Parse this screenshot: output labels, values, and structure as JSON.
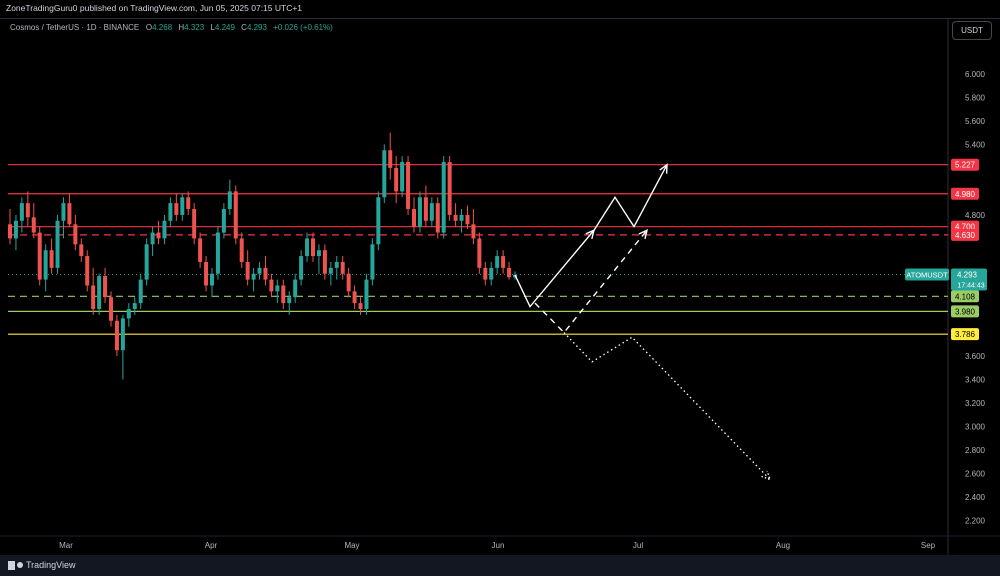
{
  "header": {
    "publisher_line": "ZoneTradingGuru0 published on TradingView.com, Jun 05, 2025 07:15 UTC+1"
  },
  "legend": {
    "symbol": "Cosmos / TetherUS · 1D · BINANCE",
    "o_label": "O",
    "o_value": "4.268",
    "h_label": "H",
    "h_value": "4.323",
    "l_label": "L",
    "l_value": "4.249",
    "c_label": "C",
    "c_value": "4.293",
    "change": "+0.026 (+0.61%)"
  },
  "currency_button": "USDT",
  "footer": {
    "brand": "TradingView"
  },
  "colors": {
    "up": "#26a69a",
    "down": "#ef5350",
    "red_level": "#f23645",
    "green_level": "#9ccc65",
    "yellow_level": "#ffeb3b",
    "ticker_tag": "#26a69a"
  },
  "chart_data": {
    "type": "candlestick",
    "x_axis": {
      "labels": [
        "Mar",
        "Apr",
        "May",
        "Jun",
        "Jul",
        "Aug",
        "Sep"
      ]
    },
    "y_axis": {
      "range": [
        2.0,
        6.2
      ],
      "ticks": [
        "6.000",
        "5.800",
        "5.600",
        "5.400",
        "4.800",
        "3.600",
        "3.400",
        "3.200",
        "3.000",
        "2.800",
        "2.600",
        "2.400",
        "2.200"
      ]
    },
    "levels": [
      {
        "value": 5.227,
        "label": "5.227",
        "style": "solid",
        "color": "#f23645"
      },
      {
        "value": 4.98,
        "label": "4.980",
        "style": "solid",
        "color": "#f23645"
      },
      {
        "value": 4.7,
        "label": "4.700",
        "style": "solid",
        "color": "#f23645"
      },
      {
        "value": 4.63,
        "label": "4.630",
        "style": "dashed",
        "color": "#f23645"
      },
      {
        "value": 4.108,
        "label": "4.108",
        "style": "dashed",
        "color": "#9ccc65"
      },
      {
        "value": 3.98,
        "label": "3.980",
        "style": "solid",
        "color": "#9ccc65"
      },
      {
        "value": 3.786,
        "label": "3.786",
        "style": "solid",
        "color": "#ffeb3b"
      }
    ],
    "last_price": {
      "ticker": "ATOMUSDT",
      "price": "4.293",
      "countdown": "17:44:43"
    },
    "candles": [
      [
        4.72,
        4.85,
        4.55,
        4.6
      ],
      [
        4.6,
        4.8,
        4.5,
        4.75
      ],
      [
        4.75,
        4.95,
        4.65,
        4.9
      ],
      [
        4.9,
        5.0,
        4.7,
        4.78
      ],
      [
        4.78,
        4.9,
        4.6,
        4.65
      ],
      [
        4.65,
        4.7,
        4.2,
        4.25
      ],
      [
        4.25,
        4.55,
        4.15,
        4.5
      ],
      [
        4.5,
        4.6,
        4.3,
        4.35
      ],
      [
        4.35,
        4.8,
        4.3,
        4.75
      ],
      [
        4.75,
        4.95,
        4.6,
        4.9
      ],
      [
        4.9,
        4.98,
        4.7,
        4.72
      ],
      [
        4.72,
        4.8,
        4.5,
        4.55
      ],
      [
        4.55,
        4.6,
        4.4,
        4.45
      ],
      [
        4.45,
        4.5,
        4.15,
        4.2
      ],
      [
        4.2,
        4.35,
        3.95,
        4.0
      ],
      [
        4.0,
        4.3,
        3.95,
        4.28
      ],
      [
        4.28,
        4.35,
        4.05,
        4.1
      ],
      [
        4.1,
        4.15,
        3.85,
        3.9
      ],
      [
        3.9,
        3.95,
        3.6,
        3.65
      ],
      [
        3.65,
        3.95,
        3.4,
        3.92
      ],
      [
        3.92,
        4.05,
        3.85,
        4.0
      ],
      [
        4.0,
        4.1,
        3.95,
        4.05
      ],
      [
        4.05,
        4.3,
        4.0,
        4.25
      ],
      [
        4.25,
        4.6,
        4.2,
        4.55
      ],
      [
        4.55,
        4.7,
        4.45,
        4.65
      ],
      [
        4.65,
        4.75,
        4.55,
        4.6
      ],
      [
        4.6,
        4.8,
        4.55,
        4.75
      ],
      [
        4.75,
        4.95,
        4.7,
        4.9
      ],
      [
        4.9,
        4.98,
        4.75,
        4.8
      ],
      [
        4.8,
        4.98,
        4.75,
        4.95
      ],
      [
        4.95,
        5.0,
        4.8,
        4.85
      ],
      [
        4.85,
        4.9,
        4.55,
        4.6
      ],
      [
        4.6,
        4.65,
        4.35,
        4.4
      ],
      [
        4.4,
        4.45,
        4.15,
        4.2
      ],
      [
        4.2,
        4.35,
        4.1,
        4.3
      ],
      [
        4.3,
        4.7,
        4.25,
        4.65
      ],
      [
        4.65,
        4.9,
        4.6,
        4.85
      ],
      [
        4.85,
        5.1,
        4.8,
        5.0
      ],
      [
        5.0,
        5.05,
        4.55,
        4.6
      ],
      [
        4.6,
        4.65,
        4.35,
        4.4
      ],
      [
        4.4,
        4.5,
        4.2,
        4.25
      ],
      [
        4.25,
        4.35,
        4.15,
        4.3
      ],
      [
        4.3,
        4.4,
        4.25,
        4.35
      ],
      [
        4.35,
        4.45,
        4.2,
        4.25
      ],
      [
        4.25,
        4.3,
        4.1,
        4.15
      ],
      [
        4.15,
        4.25,
        4.05,
        4.2
      ],
      [
        4.2,
        4.25,
        4.0,
        4.05
      ],
      [
        4.05,
        4.15,
        3.95,
        4.1
      ],
      [
        4.1,
        4.3,
        4.05,
        4.25
      ],
      [
        4.25,
        4.5,
        4.2,
        4.45
      ],
      [
        4.45,
        4.65,
        4.4,
        4.6
      ],
      [
        4.6,
        4.65,
        4.4,
        4.45
      ],
      [
        4.45,
        4.55,
        4.3,
        4.5
      ],
      [
        4.5,
        4.55,
        4.25,
        4.3
      ],
      [
        4.3,
        4.4,
        4.2,
        4.35
      ],
      [
        4.35,
        4.45,
        4.25,
        4.4
      ],
      [
        4.4,
        4.45,
        4.25,
        4.3
      ],
      [
        4.3,
        4.35,
        4.1,
        4.15
      ],
      [
        4.15,
        4.2,
        4.0,
        4.05
      ],
      [
        4.05,
        4.1,
        3.95,
        4.0
      ],
      [
        4.0,
        4.3,
        3.95,
        4.25
      ],
      [
        4.25,
        4.6,
        4.2,
        4.55
      ],
      [
        4.55,
        5.0,
        4.5,
        4.95
      ],
      [
        4.95,
        5.4,
        4.9,
        5.35
      ],
      [
        5.35,
        5.5,
        5.1,
        5.2
      ],
      [
        5.2,
        5.3,
        4.9,
        5.0
      ],
      [
        5.0,
        5.3,
        4.95,
        5.25
      ],
      [
        5.25,
        5.3,
        4.8,
        4.85
      ],
      [
        4.85,
        4.95,
        4.65,
        4.7
      ],
      [
        4.7,
        5.0,
        4.65,
        4.95
      ],
      [
        4.95,
        5.05,
        4.7,
        4.75
      ],
      [
        4.75,
        4.95,
        4.7,
        4.9
      ],
      [
        4.9,
        4.95,
        4.6,
        4.65
      ],
      [
        4.65,
        5.3,
        4.6,
        5.25
      ],
      [
        5.25,
        5.3,
        4.75,
        4.8
      ],
      [
        4.8,
        4.9,
        4.7,
        4.75
      ],
      [
        4.75,
        4.85,
        4.65,
        4.8
      ],
      [
        4.8,
        4.88,
        4.68,
        4.72
      ],
      [
        4.72,
        4.85,
        4.55,
        4.6
      ],
      [
        4.6,
        4.65,
        4.3,
        4.35
      ],
      [
        4.35,
        4.4,
        4.2,
        4.25
      ],
      [
        4.25,
        4.4,
        4.2,
        4.35
      ],
      [
        4.35,
        4.5,
        4.3,
        4.45
      ],
      [
        4.45,
        4.5,
        4.3,
        4.35
      ],
      [
        4.35,
        4.4,
        4.25,
        4.27
      ],
      [
        4.27,
        4.32,
        4.25,
        4.29
      ]
    ],
    "projections": [
      {
        "style": "solid",
        "points": [
          [
            4.29,
            0
          ],
          [
            4.02,
            1
          ],
          [
            4.67,
            2
          ],
          [
            4.95,
            3
          ],
          [
            4.7,
            4
          ],
          [
            5.227,
            5
          ]
        ]
      },
      {
        "style": "dashed",
        "points": [
          [
            4.05,
            0
          ],
          [
            3.8,
            1
          ],
          [
            4.67,
            2
          ]
        ]
      },
      {
        "style": "dotted",
        "points": [
          3.8,
          3.55,
          3.76,
          2.55
        ]
      }
    ]
  }
}
